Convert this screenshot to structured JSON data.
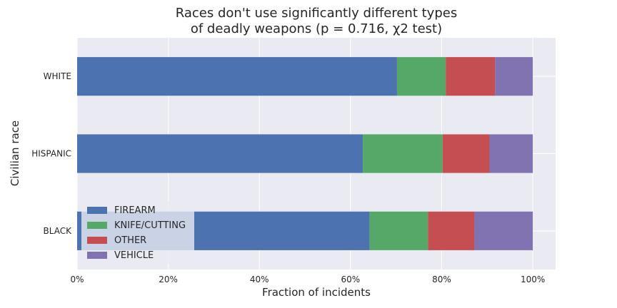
{
  "chart_data": {
    "type": "bar",
    "orientation": "horizontal",
    "stacked": true,
    "title": [
      "Races don't use significantly different types",
      "of deadly weapons (p = 0.716, χ2 test)"
    ],
    "xlabel": "Fraction of incidents",
    "ylabel": "Civilian race",
    "xlim": [
      0,
      1.05
    ],
    "xticks": [
      0,
      0.2,
      0.4,
      0.6,
      0.8,
      1.0
    ],
    "xtick_labels": [
      "0%",
      "20%",
      "40%",
      "60%",
      "80%",
      "100%"
    ],
    "categories": [
      "BLACK",
      "HISPANIC",
      "WHITE"
    ],
    "series": [
      {
        "name": "FIREARM",
        "color": "#4c72b0",
        "values": [
          0.642,
          0.627,
          0.702
        ]
      },
      {
        "name": "KNIFE/CUTTING",
        "color": "#55a868",
        "values": [
          0.128,
          0.175,
          0.107
        ]
      },
      {
        "name": "OTHER",
        "color": "#c44e52",
        "values": [
          0.102,
          0.103,
          0.108
        ]
      },
      {
        "name": "VEHICLE",
        "color": "#8172b2",
        "values": [
          0.128,
          0.095,
          0.083
        ]
      }
    ],
    "grid": true,
    "legend_position": "lower-left"
  }
}
